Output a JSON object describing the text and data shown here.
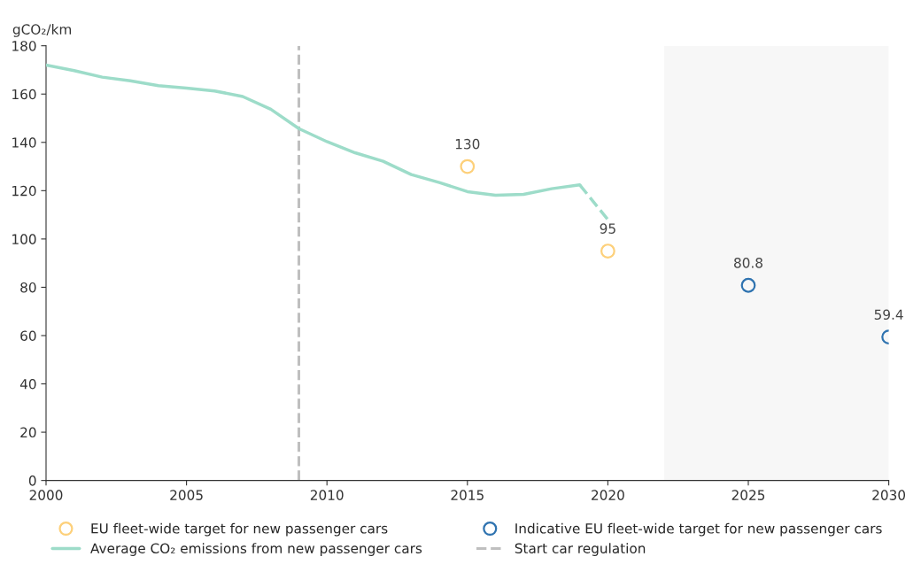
{
  "chart_data": {
    "type": "line",
    "ylabel": "gCO₂/km",
    "xlim": [
      2000,
      2030
    ],
    "xticks": [
      2000,
      2005,
      2010,
      2015,
      2020,
      2025,
      2030
    ],
    "ylim": [
      0,
      180
    ],
    "yticks": [
      0,
      20,
      40,
      60,
      80,
      100,
      120,
      140,
      160,
      180
    ],
    "grid": false,
    "legend": "bottom",
    "series": [
      {
        "type": "scatter",
        "name": "EU fleet-wide target for new passenger cars",
        "color": "#fdd07a",
        "marker": "circle",
        "data_labels": true,
        "x": [
          2015,
          2020
        ],
        "values": [
          130,
          95
        ]
      },
      {
        "name": "Average CO₂ emissions from new passenger cars",
        "color": "#9ddcc9",
        "line_style": "solid",
        "marker": "none",
        "x": [
          2000,
          2001,
          2002,
          2003,
          2004,
          2005,
          2006,
          2007,
          2008,
          2009,
          2010,
          2011,
          2012,
          2013,
          2014,
          2015,
          2016,
          2017,
          2018,
          2019
        ],
        "values": [
          172,
          169.7,
          167,
          165.5,
          163.5,
          162.5,
          161.3,
          159,
          153.7,
          145.7,
          140.3,
          135.7,
          132.2,
          126.7,
          123.4,
          119.6,
          118.1,
          118.5,
          120.8,
          122.4
        ]
      },
      {
        "type": "scatter",
        "name": "Indicative EU fleet-wide target for new passenger cars",
        "color": "#2f73b0",
        "marker": "circle",
        "data_labels": true,
        "x": [
          2025,
          2030
        ],
        "values": [
          80.8,
          59.4
        ]
      },
      {
        "color": "#9ddcc9",
        "line_style": "dashed",
        "marker": "none",
        "x": [
          2019,
          2020
        ],
        "values": [
          122.4,
          108
        ]
      }
    ],
    "ref_lines": [
      {
        "axis": "x",
        "value": 2009,
        "label": "Start car regulation",
        "color": "#bfbfbf",
        "line_style": "dashed"
      }
    ],
    "bands": [
      {
        "axis": "x",
        "from": 2022,
        "to": 2030,
        "color": "#f7f7f7"
      }
    ]
  }
}
